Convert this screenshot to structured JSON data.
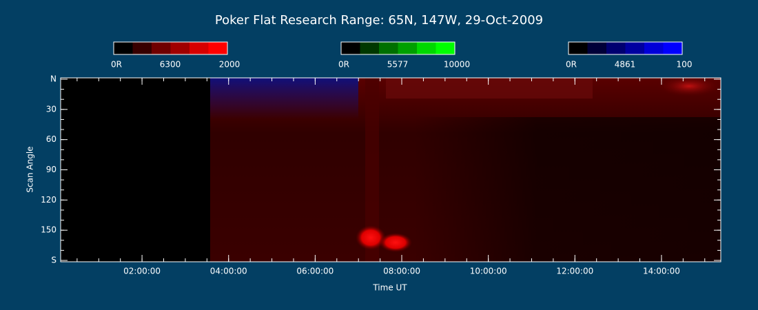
{
  "chart_data": {
    "type": "keogram",
    "title": "Poker Flat Research Range: 65N, 147W, 29-Oct-2009",
    "x_label": "Time UT",
    "y_label": "Scan Angle",
    "xlim": [
      0.12,
      15.37
    ],
    "xticks": [
      {
        "value": 2,
        "label": "02:00:00"
      },
      {
        "value": 4,
        "label": "04:00:00"
      },
      {
        "value": 6,
        "label": "06:00:00"
      },
      {
        "value": 8,
        "label": "08:00:00"
      },
      {
        "value": 10,
        "label": "10:00:00"
      },
      {
        "value": 12,
        "label": "12:00:00"
      },
      {
        "value": 14,
        "label": "14:00:00"
      }
    ],
    "ylim": [
      0,
      180
    ],
    "yticks": [
      {
        "value": 0,
        "label": "N"
      },
      30,
      60,
      90,
      120,
      150,
      {
        "value": 180,
        "label": "S"
      }
    ],
    "colorbars": [
      {
        "labels": [
          "0R",
          "6300",
          "2000"
        ],
        "colors": [
          "#000000",
          "#380000",
          "#700000",
          "#a00000",
          "#d80000",
          "#ff0000"
        ]
      },
      {
        "labels": [
          "0R",
          "5577",
          "10000"
        ],
        "colors": [
          "#000000",
          "#003800",
          "#007000",
          "#00a000",
          "#00d800",
          "#00ff00"
        ]
      },
      {
        "labels": [
          "0R",
          "4861",
          "100"
        ],
        "colors": [
          "#000000",
          "#000038",
          "#000070",
          "#0000a0",
          "#0000d8",
          "#0000ff"
        ]
      }
    ]
  }
}
